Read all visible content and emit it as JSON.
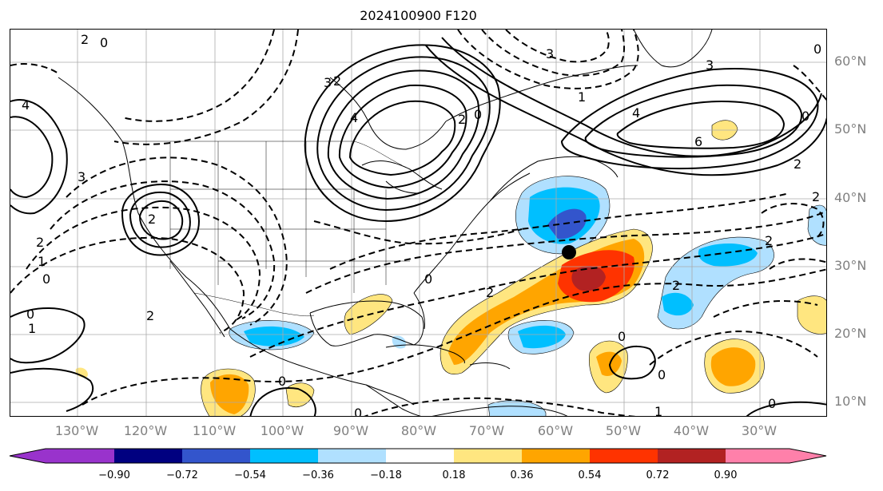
{
  "title": "2024100900 F120",
  "lat_labels": [
    "60°N",
    "50°N",
    "40°N",
    "30°N",
    "20°N",
    "10°N"
  ],
  "lon_labels": [
    "130°W",
    "120°W",
    "110°W",
    "100°W",
    "90°W",
    "80°W",
    "70°W",
    "60°W",
    "50°W",
    "40°W",
    "30°W"
  ],
  "colorbar": {
    "labels": [
      "−0.90",
      "−0.72",
      "−0.54",
      "−0.36",
      "−0.18",
      "0.18",
      "0.36",
      "0.54",
      "0.72",
      "0.90"
    ],
    "colors": [
      "#9933cc",
      "#000080",
      "#3355cc",
      "#00bfff",
      "#b0e0ff",
      "#ffffff",
      "#ffe680",
      "#ffa500",
      "#ff3300",
      "#b22222",
      "#ff80aa"
    ]
  },
  "contour_labels": {
    "c1": "2",
    "c2": "0",
    "c3": "4",
    "c4": "3",
    "c5": "2",
    "c6": "1",
    "c7": "0",
    "c8": "2",
    "c9": "3",
    "c10": "4",
    "c11": "6",
    "c12": "3",
    "c13": "2",
    "c14": "0",
    "c15": "2",
    "c16": "0",
    "c17": "0",
    "c18": "1",
    "c19": "2",
    "c20": "0",
    "c21": "2",
    "c22": "0",
    "c23": "0",
    "c24": "0",
    "c25": "0",
    "c26": "1",
    "c27": "2",
    "c28": "4",
    "c29": "2",
    "c30": "2",
    "c31": "1",
    "c32": "0",
    "c33": "2",
    "c34": "0",
    "c35": "3"
  },
  "legend": {
    "marker": "storm-center-marker"
  },
  "colors": {
    "land_outline": "#000000",
    "grid": "#aaaaaa",
    "contour": "#000000",
    "axis_label": "#808080"
  }
}
